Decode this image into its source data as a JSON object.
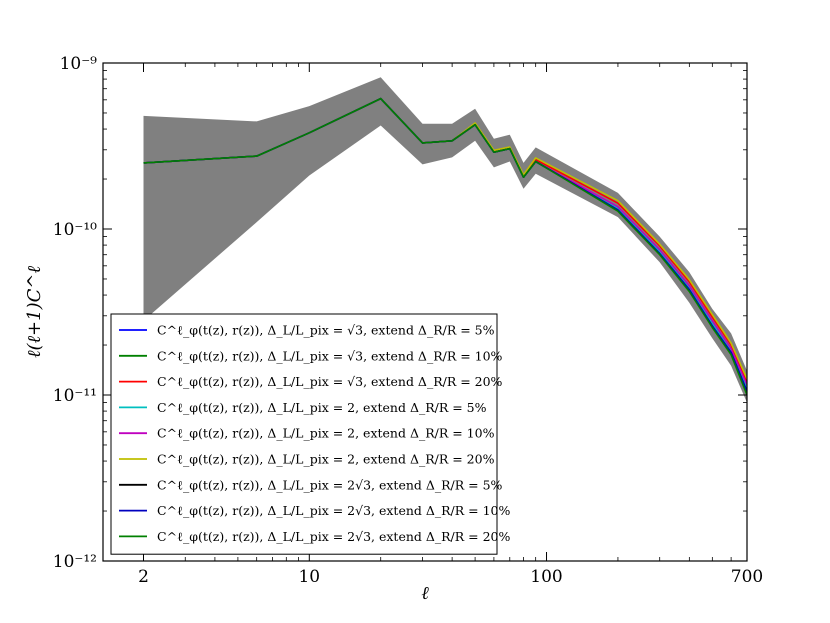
{
  "chart_data": {
    "type": "line",
    "title": "",
    "xlabel": "ℓ",
    "ylabel": "ℓ(ℓ+1)C^ℓ",
    "xscale": "log",
    "yscale": "log",
    "xlim": [
      1.35,
      700
    ],
    "ylim": [
      1e-12,
      1e-09
    ],
    "xticks": [
      {
        "value": 2,
        "label": "2"
      },
      {
        "value": 10,
        "label": "10"
      },
      {
        "value": 100,
        "label": "100"
      },
      {
        "value": 700,
        "label": "700"
      }
    ],
    "yticks": [
      {
        "value": 1e-09,
        "label": "10⁻⁹"
      },
      {
        "value": 1e-10,
        "label": "10⁻¹⁰"
      },
      {
        "value": 1e-11,
        "label": "10⁻¹¹"
      },
      {
        "value": 1e-12,
        "label": "10⁻¹²"
      }
    ],
    "grid": false,
    "legend_position": "lower-left",
    "band": {
      "color": "#808080",
      "x": [
        2,
        6,
        10,
        20,
        30,
        40,
        50,
        60,
        70,
        80,
        90,
        200,
        300,
        400,
        500,
        600,
        700
      ],
      "lower": [
        2.8e-11,
        1.1e-10,
        2.1e-10,
        4.2e-10,
        2.45e-10,
        2.7e-10,
        3.4e-10,
        2.35e-10,
        2.55e-10,
        1.75e-10,
        2.15e-10,
        1.18e-10,
        6.3e-11,
        3.6e-11,
        2.2e-11,
        1.5e-11,
        9e-12
      ],
      "upper": [
        4.8e-10,
        4.45e-10,
        5.5e-10,
        8.2e-10,
        4.3e-10,
        4.3e-10,
        5.3e-10,
        3.5e-10,
        3.7e-10,
        2.5e-10,
        3.1e-10,
        1.65e-10,
        9e-11,
        5.5e-11,
        3.3e-11,
        2.35e-11,
        1.4e-11
      ]
    },
    "x": [
      2,
      6,
      10,
      20,
      30,
      40,
      50,
      60,
      70,
      80,
      90,
      200,
      300,
      400,
      500,
      600,
      700
    ],
    "series": [
      {
        "name": "C^ℓ_φ(t(z), r(z)), Δ_L/L_pix = √3, extend Δ_R/R = 5%",
        "color": "#0000ff",
        "values": [
          2.5e-10,
          2.75e-10,
          3.8e-10,
          6.1e-10,
          3.3e-10,
          3.4e-10,
          4.25e-10,
          2.9e-10,
          3.05e-10,
          2.05e-10,
          2.55e-10,
          1.33e-10,
          7.3e-11,
          4.4e-11,
          2.7e-11,
          1.85e-11,
          1.1e-11
        ]
      },
      {
        "name": "C^ℓ_φ(t(z), r(z)), Δ_L/L_pix = √3, extend Δ_R/R = 10%",
        "color": "#008000",
        "values": [
          2.5e-10,
          2.75e-10,
          3.8e-10,
          6.1e-10,
          3.3e-10,
          3.4e-10,
          4.25e-10,
          2.9e-10,
          3.05e-10,
          2.05e-10,
          2.55e-10,
          1.33e-10,
          7.3e-11,
          4.4e-11,
          2.7e-11,
          1.85e-11,
          1.1e-11
        ]
      },
      {
        "name": "C^ℓ_φ(t(z), r(z)), Δ_L/L_pix = √3, extend Δ_R/R = 20%",
        "color": "#ff0000",
        "values": [
          2.5e-10,
          2.75e-10,
          3.8e-10,
          6.1e-10,
          3.3e-10,
          3.4e-10,
          4.3e-10,
          2.95e-10,
          3.1e-10,
          2.1e-10,
          2.62e-10,
          1.43e-10,
          7.9e-11,
          4.8e-11,
          2.95e-11,
          2e-11,
          1.2e-11
        ]
      },
      {
        "name": "C^ℓ_φ(t(z), r(z)), Δ_L/L_pix = 2, extend Δ_R/R = 5%",
        "color": "#00bfbf",
        "values": [
          2.5e-10,
          2.75e-10,
          3.8e-10,
          6.1e-10,
          3.3e-10,
          3.4e-10,
          4.25e-10,
          2.9e-10,
          3.05e-10,
          2.05e-10,
          2.55e-10,
          1.33e-10,
          7.3e-11,
          4.4e-11,
          2.7e-11,
          1.85e-11,
          1.1e-11
        ]
      },
      {
        "name": "C^ℓ_φ(t(z), r(z)), Δ_L/L_pix = 2, extend Δ_R/R = 10%",
        "color": "#bf00bf",
        "values": [
          2.5e-10,
          2.75e-10,
          3.8e-10,
          6.1e-10,
          3.3e-10,
          3.4e-10,
          4.25e-10,
          2.9e-10,
          3.05e-10,
          2.05e-10,
          2.55e-10,
          1.36e-10,
          7.5e-11,
          4.55e-11,
          2.8e-11,
          1.9e-11,
          1.15e-11
        ]
      },
      {
        "name": "C^ℓ_φ(t(z), r(z)), Δ_L/L_pix = 2, extend Δ_R/R = 20%",
        "color": "#bfbf00",
        "values": [
          2.5e-10,
          2.75e-10,
          3.8e-10,
          6.1e-10,
          3.3e-10,
          3.4e-10,
          4.35e-10,
          2.98e-10,
          3.12e-10,
          2.12e-10,
          2.68e-10,
          1.48e-10,
          8.1e-11,
          4.95e-11,
          3.05e-11,
          2.05e-11,
          1.25e-11
        ]
      },
      {
        "name": "C^ℓ_φ(t(z), r(z)), Δ_L/L_pix = 2√3, extend Δ_R/R = 5%",
        "color": "#000000",
        "values": [
          2.5e-10,
          2.75e-10,
          3.8e-10,
          6.1e-10,
          3.3e-10,
          3.4e-10,
          4.25e-10,
          2.9e-10,
          3.05e-10,
          2.05e-10,
          2.55e-10,
          1.3e-10,
          7.1e-11,
          4.3e-11,
          2.6e-11,
          1.8e-11,
          1.05e-11
        ]
      },
      {
        "name": "C^ℓ_φ(t(z), r(z)), Δ_L/L_pix = 2√3, extend Δ_R/R = 10%",
        "color": "#0000bf",
        "values": [
          2.5e-10,
          2.75e-10,
          3.8e-10,
          6.1e-10,
          3.3e-10,
          3.4e-10,
          4.25e-10,
          2.9e-10,
          3.05e-10,
          2.05e-10,
          2.55e-10,
          1.3e-10,
          7.1e-11,
          4.3e-11,
          2.6e-11,
          1.8e-11,
          1.05e-11
        ]
      },
      {
        "name": "C^ℓ_φ(t(z), r(z)), Δ_L/L_pix = 2√3, extend Δ_R/R = 20%",
        "color": "#008000",
        "values": [
          2.5e-10,
          2.75e-10,
          3.8e-10,
          6.1e-10,
          3.3e-10,
          3.4e-10,
          4.25e-10,
          2.9e-10,
          3.05e-10,
          2.05e-10,
          2.55e-10,
          1.28e-10,
          7e-11,
          4.2e-11,
          2.55e-11,
          1.75e-11,
          1e-11
        ]
      }
    ]
  }
}
